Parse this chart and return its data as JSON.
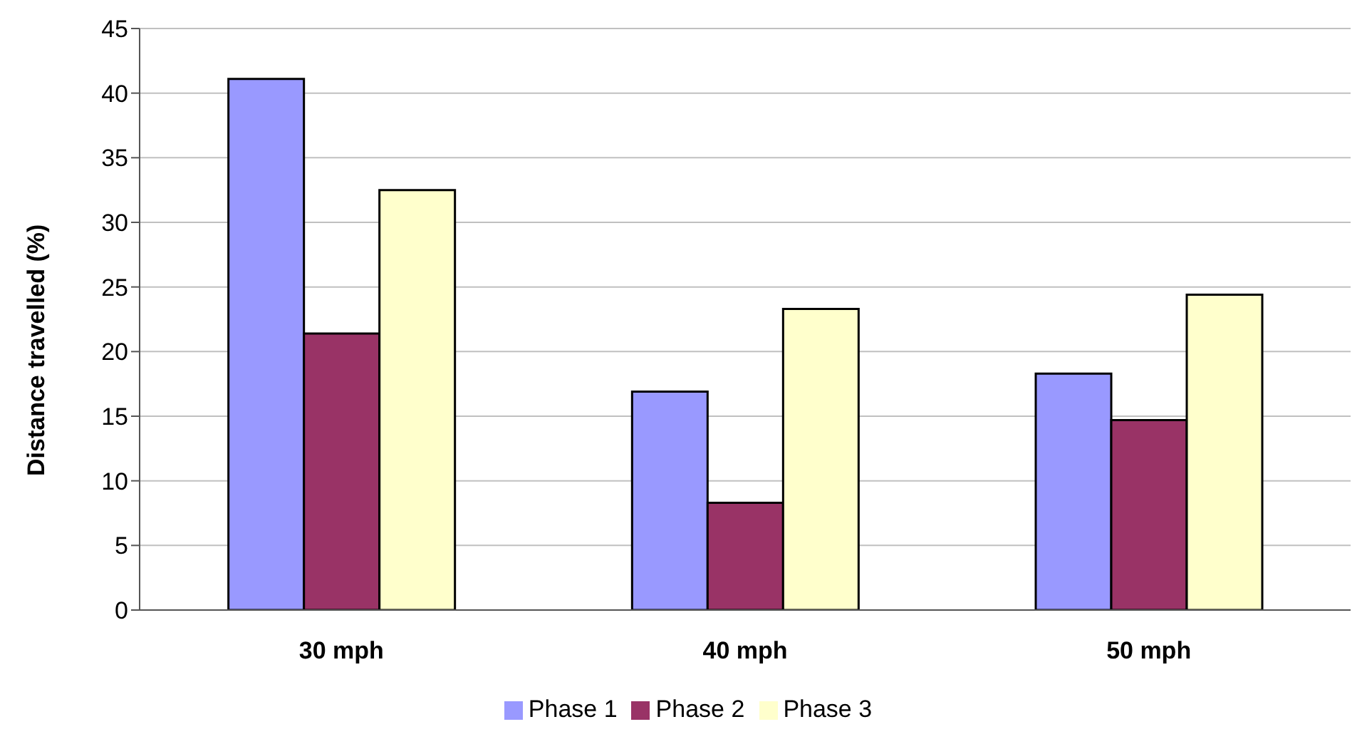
{
  "chart_data": {
    "type": "bar",
    "ylabel": "Distance travelled (%)",
    "categories": [
      "30 mph",
      "40 mph",
      "50 mph"
    ],
    "series": [
      {
        "name": "Phase 1",
        "color": "#9999ff",
        "values": [
          41.1,
          16.9,
          18.3
        ]
      },
      {
        "name": "Phase 2",
        "color": "#993366",
        "values": [
          21.4,
          8.3,
          14.7
        ]
      },
      {
        "name": "Phase 3",
        "color": "#ffffcc",
        "values": [
          32.5,
          23.3,
          24.4
        ]
      }
    ],
    "ylim": [
      0,
      45
    ],
    "yticks": [
      0,
      5,
      10,
      15,
      20,
      25,
      30,
      35,
      40,
      45
    ],
    "grid": "y",
    "legend": "bottom"
  }
}
